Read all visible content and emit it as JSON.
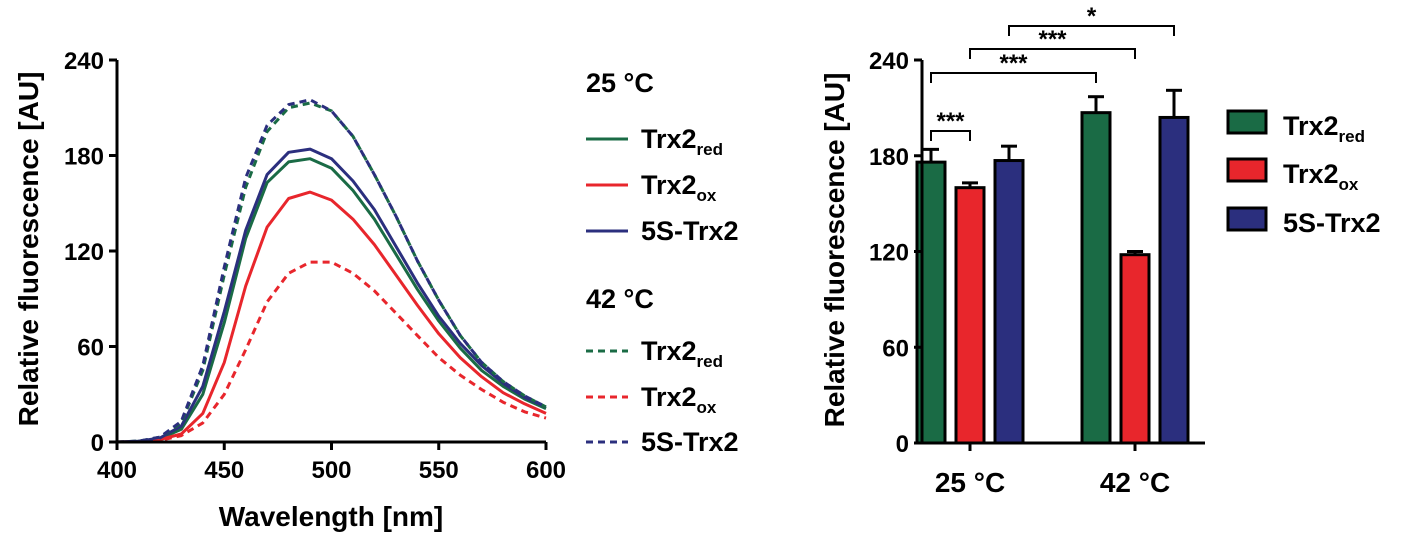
{
  "chart_data": [
    {
      "type": "line",
      "xlabel": "Wavelength [nm]",
      "ylabel": "Relative fluorescence [AU]",
      "xlim": [
        400,
        600
      ],
      "ylim": [
        0,
        240
      ],
      "xticks": [
        "400",
        "450",
        "500",
        "550",
        "600"
      ],
      "yticks": [
        "0",
        "60",
        "120",
        "180",
        "240"
      ],
      "grid": false,
      "legend_position": "right",
      "legend_groups": [
        {
          "title": "25 °C",
          "style": "solid"
        },
        {
          "title": "42 °C",
          "style": "dashed"
        }
      ],
      "x": [
        400,
        410,
        420,
        430,
        440,
        450,
        460,
        470,
        480,
        490,
        500,
        510,
        520,
        530,
        540,
        550,
        560,
        570,
        580,
        590,
        600
      ],
      "series": [
        {
          "name": "Trx2",
          "sub": "red",
          "group": "25 °C",
          "color": "#1a6b45",
          "dash": "solid",
          "values": [
            0,
            0.5,
            2,
            8,
            30,
            75,
            128,
            163,
            176,
            178,
            172,
            158,
            140,
            118,
            96,
            76,
            59,
            45,
            35,
            27,
            21
          ]
        },
        {
          "name": "Trx2",
          "sub": "ox",
          "group": "25 °C",
          "color": "#e8262c",
          "dash": "solid",
          "values": [
            0,
            0.3,
            1.5,
            5,
            18,
            50,
            98,
            135,
            153,
            157,
            152,
            140,
            124,
            105,
            86,
            68,
            53,
            41,
            31,
            24,
            18
          ]
        },
        {
          "name": "5S-Trx2",
          "sub": "",
          "group": "25 °C",
          "color": "#2b2f7e",
          "dash": "solid",
          "values": [
            0,
            0.5,
            2.5,
            10,
            35,
            82,
            133,
            168,
            182,
            184,
            178,
            164,
            146,
            123,
            100,
            79,
            62,
            48,
            37,
            28,
            22
          ]
        },
        {
          "name": "Trx2",
          "sub": "red",
          "group": "42 °C",
          "color": "#1a6b45",
          "dash": "dashed",
          "values": [
            0,
            0.5,
            3,
            12,
            45,
            105,
            160,
            195,
            210,
            213,
            208,
            192,
            168,
            142,
            114,
            89,
            67,
            50,
            38,
            29,
            22
          ]
        },
        {
          "name": "Trx2",
          "sub": "ox",
          "group": "42 °C",
          "color": "#e8262c",
          "dash": "dashed",
          "values": [
            0,
            0.2,
            1,
            4,
            12,
            30,
            58,
            88,
            106,
            113,
            113,
            106,
            95,
            81,
            67,
            53,
            42,
            33,
            25,
            19,
            15
          ]
        },
        {
          "name": "5S-Trx2",
          "sub": "",
          "group": "42 °C",
          "color": "#2b2f7e",
          "dash": "dashed",
          "values": [
            0,
            0.5,
            3,
            13,
            48,
            110,
            166,
            199,
            212,
            215,
            208,
            192,
            168,
            142,
            114,
            89,
            67,
            50,
            38,
            29,
            22
          ]
        }
      ]
    },
    {
      "type": "bar",
      "ylabel": "Relative fluorescence [AU]",
      "ylim": [
        0,
        240
      ],
      "yticks": [
        "0",
        "60",
        "120",
        "180",
        "240"
      ],
      "categories": [
        "25 °C",
        "42 °C"
      ],
      "legend_position": "right",
      "series": [
        {
          "name": "Trx2",
          "sub": "red",
          "color": "#1a6b45",
          "values": [
            176,
            207
          ],
          "errors": [
            8,
            10
          ]
        },
        {
          "name": "Trx2",
          "sub": "ox",
          "color": "#e8262c",
          "values": [
            160,
            118
          ],
          "errors": [
            3,
            2
          ]
        },
        {
          "name": "5S-Trx2",
          "sub": "",
          "color": "#2b2f7e",
          "values": [
            177,
            204
          ],
          "errors": [
            9,
            17
          ]
        }
      ],
      "significance": [
        {
          "from": [
            0,
            0
          ],
          "to": [
            0,
            1
          ],
          "label": "***"
        },
        {
          "from": [
            0,
            0
          ],
          "to": [
            1,
            0
          ],
          "label": "***"
        },
        {
          "from": [
            0,
            1
          ],
          "to": [
            1,
            1
          ],
          "label": "***"
        },
        {
          "from": [
            0,
            2
          ],
          "to": [
            1,
            2
          ],
          "label": "*"
        }
      ]
    }
  ]
}
